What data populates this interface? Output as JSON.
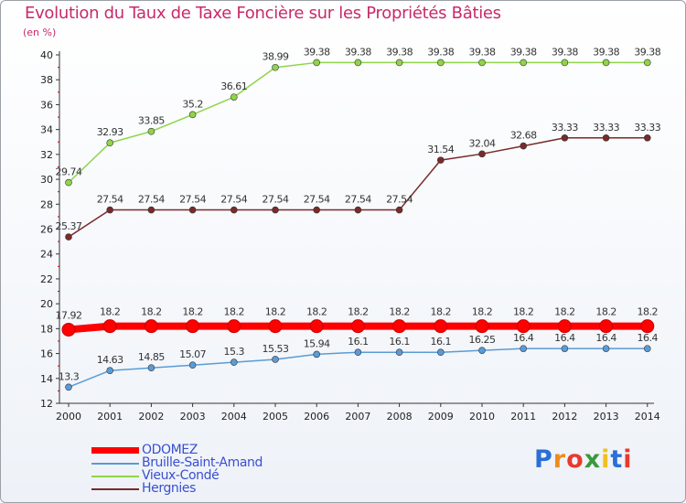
{
  "header": {
    "title": "Evolution du Taux de Taxe Foncière sur les Propriétés Bâties",
    "subtitle": "(en %)"
  },
  "logo": {
    "text": "Proxiti",
    "letters": [
      "P",
      "r",
      "o",
      "x",
      "i",
      "t",
      "i"
    ],
    "letter_colors": [
      "#2a6fd6",
      "#f08a1c",
      "#e83a2d",
      "#3a9a3a",
      "#f0c020",
      "#2a6fd6",
      "#e83a2d"
    ]
  },
  "chart_data": {
    "type": "line",
    "title": "Evolution du Taux de Taxe Foncière sur les Propriétés Bâties",
    "ylabel": "(en %)",
    "xlabel": "",
    "x": [
      "2000",
      "2001",
      "2002",
      "2003",
      "2004",
      "2005",
      "2006",
      "2007",
      "2008",
      "2009",
      "2010",
      "2011",
      "2012",
      "2013",
      "2014"
    ],
    "ylim": [
      12,
      40
    ],
    "yticks": [
      "12",
      "14",
      "16",
      "18",
      "20",
      "22",
      "24",
      "26",
      "28",
      "30",
      "32",
      "34",
      "36",
      "38",
      "40"
    ],
    "grid": false,
    "legend_position": "bottom-left",
    "series": [
      {
        "name": "ODOMEZ",
        "color": "#ff0000",
        "emphasis": true,
        "values": [
          17.92,
          18.2,
          18.2,
          18.2,
          18.2,
          18.2,
          18.2,
          18.2,
          18.2,
          18.2,
          18.2,
          18.2,
          18.2,
          18.2,
          18.2
        ],
        "labels": [
          "17.92",
          "18.2",
          "18.2",
          "18.2",
          "18.2",
          "18.2",
          "18.2",
          "18.2",
          "18.2",
          "18.2",
          "18.2",
          "18.2",
          "18.2",
          "18.2",
          "18.2"
        ]
      },
      {
        "name": "Bruille-Saint-Amand",
        "color": "#5b9bd5",
        "emphasis": false,
        "values": [
          13.3,
          14.63,
          14.85,
          15.07,
          15.3,
          15.53,
          15.94,
          16.1,
          16.1,
          16.1,
          16.25,
          16.4,
          16.4,
          16.4,
          16.4
        ],
        "labels": [
          "13.3",
          "14.63",
          "14.85",
          "15.07",
          "15.3",
          "15.53",
          "15.94",
          "16.1",
          "16.1",
          "16.1",
          "16.25",
          "16.4",
          "16.4",
          "16.4",
          "16.4"
        ]
      },
      {
        "name": "Vieux-Condé",
        "color": "#8fd44a",
        "emphasis": false,
        "values": [
          29.74,
          32.93,
          33.85,
          35.2,
          36.61,
          38.99,
          39.38,
          39.38,
          39.38,
          39.38,
          39.38,
          39.38,
          39.38,
          39.38,
          39.38
        ],
        "labels": [
          "29.74",
          "32.93",
          "33.85",
          "35.2",
          "36.61",
          "38.99",
          "39.38",
          "39.38",
          "39.38",
          "39.38",
          "39.38",
          "39.38",
          "39.38",
          "39.38",
          "39.38"
        ]
      },
      {
        "name": "Hergnies",
        "color": "#7a2a2a",
        "emphasis": false,
        "values": [
          25.37,
          27.54,
          27.54,
          27.54,
          27.54,
          27.54,
          27.54,
          27.54,
          27.54,
          31.54,
          32.04,
          32.68,
          33.33,
          33.33,
          33.33
        ],
        "labels": [
          "25.37",
          "27.54",
          "27.54",
          "27.54",
          "27.54",
          "27.54",
          "27.54",
          "27.54",
          "27.54",
          "31.54",
          "32.04",
          "32.68",
          "33.33",
          "33.33",
          "33.33"
        ]
      }
    ]
  }
}
